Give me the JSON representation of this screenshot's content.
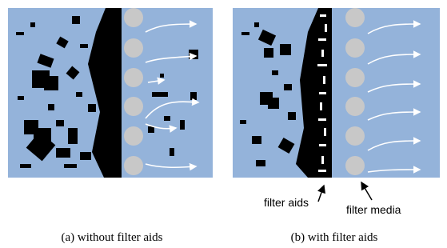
{
  "panels": [
    {
      "caption": "(a) without filter aids"
    },
    {
      "caption": "(b) with filter aids",
      "labels": {
        "filter_aids": "filter aids",
        "filter_media": "filter media"
      }
    }
  ]
}
